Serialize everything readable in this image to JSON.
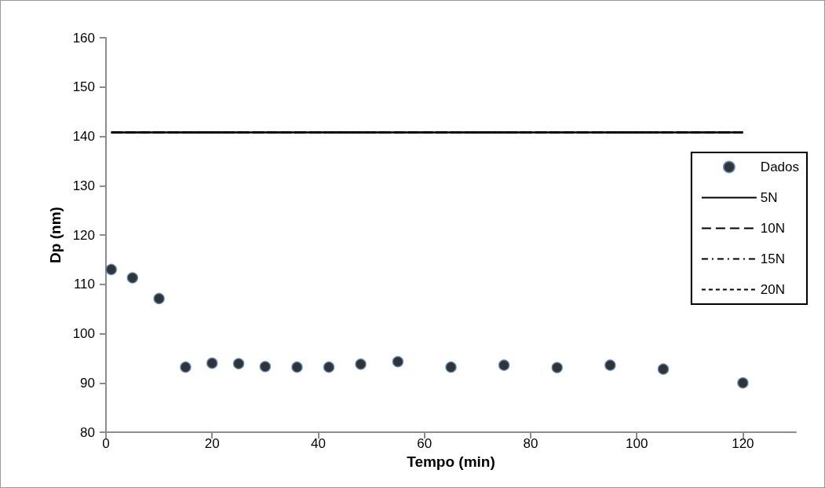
{
  "chart_data": {
    "type": "scatter",
    "xlabel": "Tempo (min)",
    "ylabel": "Dp (nm)",
    "xlim": [
      0,
      130
    ],
    "xticks": [
      0,
      20,
      40,
      60,
      80,
      100,
      120
    ],
    "ylim": [
      80,
      160
    ],
    "yticks": [
      80,
      90,
      100,
      110,
      120,
      130,
      140,
      150,
      160
    ],
    "grid": false,
    "legend": "right",
    "marker": "circle",
    "series": [
      {
        "name": "Dados",
        "color": "#000000",
        "x": [
          1,
          5,
          10,
          15,
          20,
          25,
          30,
          36,
          42,
          48,
          55,
          65,
          75,
          85,
          95,
          105,
          120
        ],
        "values": [
          113.0,
          111.3,
          107.1,
          93.2,
          94.0,
          93.9,
          93.3,
          93.2,
          93.2,
          93.8,
          94.3,
          93.2,
          93.6,
          93.1,
          93.6,
          92.8,
          90.0
        ]
      },
      {
        "name": "5N",
        "type": "line",
        "color": "#000000",
        "line_style": "solid",
        "marker": "none",
        "x": [
          1,
          120
        ],
        "values": [
          140.8,
          140.8
        ]
      },
      {
        "name": "10N",
        "type": "line",
        "color": "#000000",
        "line_style": "dashed",
        "marker": "none",
        "x": [
          1,
          120
        ],
        "values": [
          140.8,
          140.8
        ]
      },
      {
        "name": "15N",
        "type": "line",
        "color": "#000000",
        "line_style": "dashdot",
        "marker": "none",
        "x": [
          1,
          120
        ],
        "values": [
          140.8,
          140.8
        ]
      },
      {
        "name": "20N",
        "type": "line",
        "color": "#000000",
        "line_style": "dotted",
        "marker": "none",
        "x": [
          1,
          120
        ],
        "values": [
          140.8,
          140.8
        ]
      }
    ]
  }
}
